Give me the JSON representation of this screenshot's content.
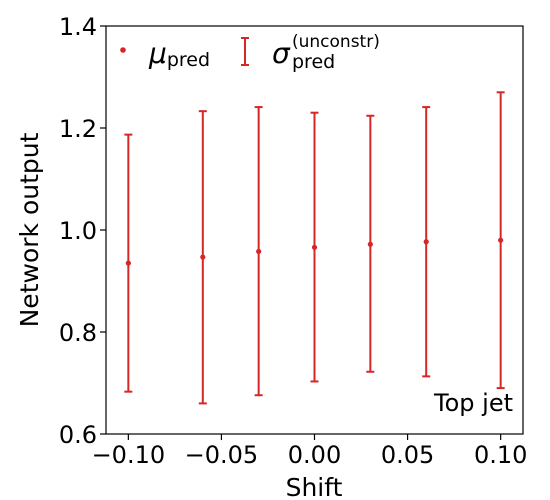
{
  "chart_data": {
    "type": "scatter",
    "xlabel": "Shift",
    "ylabel": "Network output",
    "xlim": [
      -0.112,
      0.112
    ],
    "ylim": [
      0.6,
      1.4
    ],
    "x_ticks": [
      -0.1,
      -0.05,
      0.0,
      0.05,
      0.1
    ],
    "x_tick_labels": [
      "−0.10",
      "−0.05",
      "0.00",
      "0.05",
      "0.10"
    ],
    "y_ticks": [
      0.6,
      0.8,
      1.0,
      1.2,
      1.4
    ],
    "y_tick_labels": [
      "0.6",
      "0.8",
      "1.0",
      "1.2",
      "1.4"
    ],
    "grid": false,
    "legend_position": "top-left",
    "color": "#d62728",
    "series": [
      {
        "legend_main": "μ",
        "legend_sub": "pred",
        "legend_sup": "",
        "x": [
          -0.1,
          -0.06,
          -0.03,
          0.0,
          0.03,
          0.06,
          0.1
        ],
        "y": [
          0.935,
          0.947,
          0.958,
          0.966,
          0.972,
          0.977,
          0.98
        ]
      },
      {
        "legend_main": "σ",
        "legend_sub": "pred",
        "legend_sup": "(unconstr)",
        "x": [
          -0.1,
          -0.06,
          -0.03,
          0.0,
          0.03,
          0.06,
          0.1
        ],
        "lower": [
          0.683,
          0.66,
          0.676,
          0.703,
          0.722,
          0.713,
          0.69
        ],
        "upper": [
          1.187,
          1.233,
          1.241,
          1.23,
          1.224,
          1.241,
          1.27
        ]
      }
    ],
    "annotation": "Top jet"
  }
}
